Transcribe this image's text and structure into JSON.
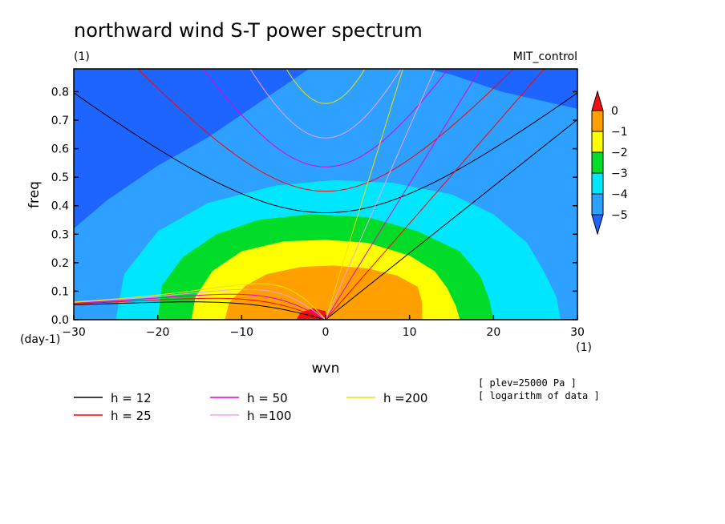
{
  "chart_data": {
    "type": "heatmap",
    "title": "northward wind S-T power spectrum",
    "subtitle_left": "(1)",
    "subtitle_right": "MIT_control",
    "xlabel": "wvn",
    "ylabel": "freq",
    "x_unit": "(1)",
    "y_unit": "(day-1)",
    "xlim": [
      -30,
      30
    ],
    "ylim": [
      0,
      0.88
    ],
    "x_ticks": [
      -30,
      -20,
      -10,
      0,
      10,
      20,
      30
    ],
    "y_ticks": [
      0.0,
      0.1,
      0.2,
      0.3,
      0.4,
      0.5,
      0.6,
      0.7,
      0.8
    ],
    "colorbar": {
      "levels": [
        -5,
        -4,
        -3,
        -2,
        -1,
        0
      ],
      "tick_labels": [
        "0",
        "-1",
        "-2",
        "-3",
        "-4",
        "-5"
      ],
      "colors": [
        "#1e64ff",
        "#2ea0ff",
        "#00e6ff",
        "#00dc28",
        "#ffff00",
        "#ffa000",
        "#f01010"
      ]
    },
    "filled_contours": [
      {
        "level": "> 0",
        "color": "#f01010",
        "points": [
          [
            -3.5,
            0
          ],
          [
            -3,
            0.025
          ],
          [
            -1.5,
            0.04
          ],
          [
            0,
            0.03
          ],
          [
            0.2,
            0
          ]
        ]
      },
      {
        "level": "-1 to 0",
        "color": "#ffa000",
        "points": [
          [
            -12,
            0
          ],
          [
            -11.5,
            0.06
          ],
          [
            -9.5,
            0.12
          ],
          [
            -7,
            0.16
          ],
          [
            -3,
            0.185
          ],
          [
            1,
            0.19
          ],
          [
            5,
            0.18
          ],
          [
            8.5,
            0.155
          ],
          [
            11,
            0.115
          ],
          [
            11.5,
            0.06
          ],
          [
            11.5,
            0
          ]
        ]
      },
      {
        "level": "-2 to -1",
        "color": "#ffff00",
        "points": [
          [
            -16,
            0
          ],
          [
            -15.5,
            0.08
          ],
          [
            -13.5,
            0.17
          ],
          [
            -10,
            0.24
          ],
          [
            -5,
            0.275
          ],
          [
            0,
            0.28
          ],
          [
            5,
            0.27
          ],
          [
            10,
            0.225
          ],
          [
            13,
            0.17
          ],
          [
            14.5,
            0.11
          ],
          [
            15.5,
            0.05
          ],
          [
            16,
            0
          ]
        ]
      },
      {
        "level": "-3 to -2",
        "color": "#00dc28",
        "points": [
          [
            -20,
            0
          ],
          [
            -19.5,
            0.12
          ],
          [
            -17,
            0.22
          ],
          [
            -13,
            0.3
          ],
          [
            -8,
            0.35
          ],
          [
            -2,
            0.37
          ],
          [
            5,
            0.36
          ],
          [
            11,
            0.31
          ],
          [
            16,
            0.24
          ],
          [
            18.5,
            0.15
          ],
          [
            19.5,
            0.07
          ],
          [
            20,
            0
          ]
        ]
      },
      {
        "level": "-4 to -3",
        "color": "#00e6ff",
        "points": [
          [
            -25,
            0
          ],
          [
            -24,
            0.16
          ],
          [
            -20,
            0.31
          ],
          [
            -14,
            0.41
          ],
          [
            -6,
            0.47
          ],
          [
            1,
            0.49
          ],
          [
            8,
            0.48
          ],
          [
            15,
            0.44
          ],
          [
            20,
            0.37
          ],
          [
            24,
            0.27
          ],
          [
            26,
            0.17
          ],
          [
            27.5,
            0.08
          ],
          [
            28,
            0
          ]
        ]
      },
      {
        "level": "-5 to -4",
        "color": "#2ea0ff",
        "points": [
          [
            -30,
            0
          ],
          [
            -30,
            0.32
          ],
          [
            -26,
            0.42
          ],
          [
            -20,
            0.54
          ],
          [
            -14,
            0.64
          ],
          [
            -8,
            0.76
          ],
          [
            -3,
            0.86
          ],
          [
            -2,
            0.88
          ],
          [
            12,
            0.88
          ],
          [
            15,
            0.86
          ],
          [
            21,
            0.8
          ],
          [
            27,
            0.76
          ],
          [
            30,
            0.74
          ],
          [
            30,
            0
          ]
        ]
      }
    ],
    "series": [
      {
        "name": "h = 12",
        "color": "#000000",
        "values": [
          12
        ]
      },
      {
        "name": "h = 25",
        "color": "#ff0000",
        "values": [
          25
        ]
      },
      {
        "name": "h = 50",
        "color": "#e600d0",
        "values": [
          50
        ]
      },
      {
        "name": "h =100",
        "color": "#f0a0f0",
        "values": [
          100
        ]
      },
      {
        "name": "h =200",
        "color": "#f0e000",
        "values": [
          200
        ]
      }
    ],
    "annotations": [
      "[ plev=25000 Pa ]",
      "[ logarithm of data ]"
    ]
  }
}
